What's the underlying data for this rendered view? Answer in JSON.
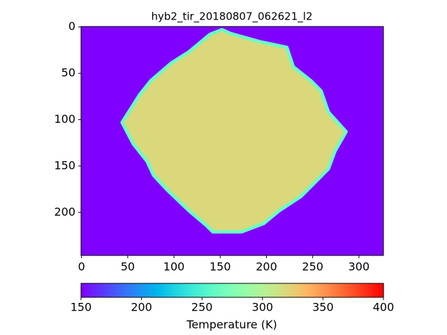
{
  "chart_data": {
    "type": "image",
    "title": "hyb2_tir_20180807_062621_l2",
    "colormap": "rainbow",
    "xlim": [
      -0.5,
      326.5
    ],
    "ylim": [
      246.5,
      -0.5
    ],
    "xticks": [
      0,
      50,
      100,
      150,
      200,
      250,
      300
    ],
    "yticks": [
      0,
      50,
      100,
      150,
      200
    ],
    "background_value": 150,
    "body": {
      "value": 320,
      "edge_value": 265,
      "x": [
        152,
        161,
        193,
        222,
        229,
        248,
        259,
        267,
        286,
        274,
        267,
        252,
        237,
        214,
        197,
        173,
        142,
        135,
        116,
        93,
        78,
        71,
        56,
        44,
        63,
        75,
        97,
        116,
        139
      ],
      "y": [
        3,
        7,
        16,
        22,
        43,
        58,
        69,
        92,
        113,
        134,
        153,
        168,
        183,
        198,
        212,
        221,
        221,
        214,
        198,
        176,
        160,
        145,
        126,
        103,
        73,
        58,
        39,
        27,
        8
      ]
    },
    "colorbar": {
      "label": "Temperature (K)",
      "clim": [
        150,
        400
      ],
      "ticks": [
        150,
        200,
        250,
        300,
        350,
        400
      ]
    }
  }
}
